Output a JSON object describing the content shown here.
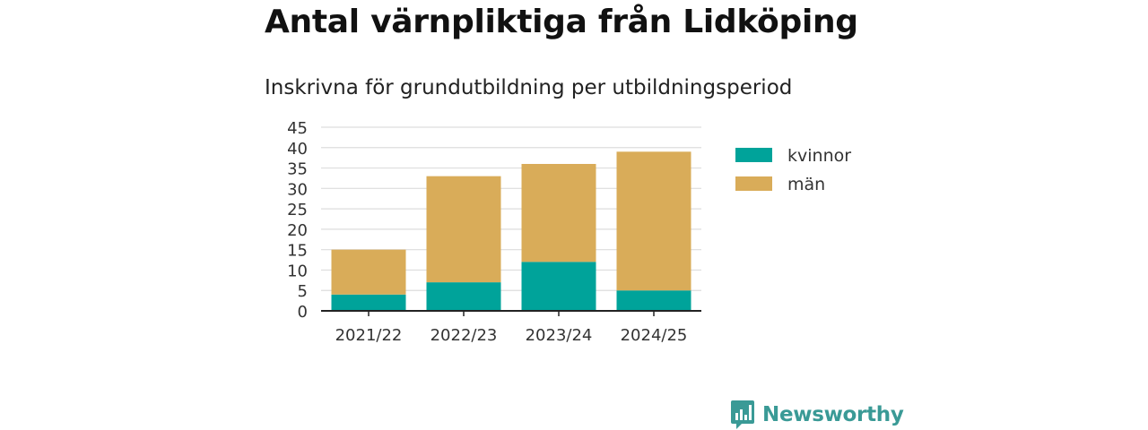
{
  "title": "Antal värnpliktiga från Lidköping",
  "subtitle": "Inskrivna för grundutbildning per utbildningsperiod",
  "brand": {
    "name": "Newsworthy",
    "icon": "bar-chart-speech-bubble-icon",
    "color": "#3a9a96"
  },
  "chart_data": {
    "type": "bar",
    "stacked": true,
    "categories": [
      "2021/22",
      "2022/23",
      "2023/24",
      "2024/25"
    ],
    "series": [
      {
        "name": "kvinnor",
        "color": "#00a39a",
        "values": [
          4,
          7,
          12,
          5
        ]
      },
      {
        "name": "män",
        "color": "#d9ac59",
        "values": [
          11,
          26,
          24,
          34
        ]
      }
    ],
    "ylim": [
      0,
      45
    ],
    "yticks": [
      0,
      5,
      10,
      15,
      20,
      25,
      30,
      35,
      40,
      45
    ],
    "grid": true,
    "legend_position": "right",
    "xlabel": "",
    "ylabel": ""
  }
}
